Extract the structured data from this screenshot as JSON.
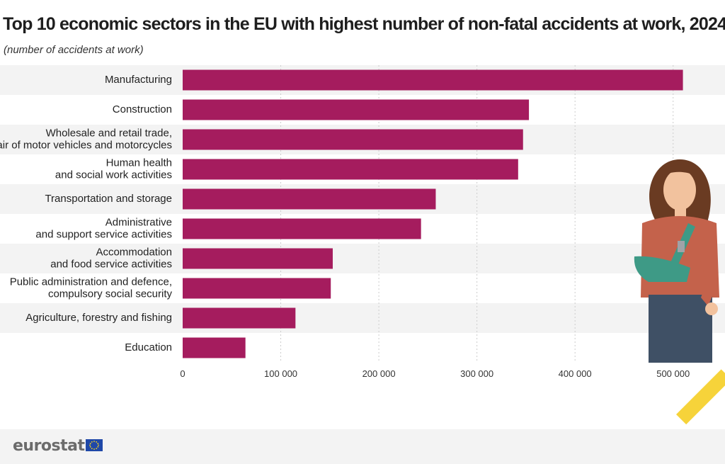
{
  "title": "Top 10 economic sectors in the EU with highest number of non-fatal accidents at work, 2024",
  "subtitle": "(number of accidents at work)",
  "brand": {
    "name": "eurostat",
    "flag_color": "#1f48a8",
    "stripe_color": "#f6d33a"
  },
  "colors": {
    "bar": "#a51c5e",
    "band": "#f3f3f3",
    "grid": "#cccccc"
  },
  "chart_data": {
    "type": "bar",
    "orientation": "horizontal",
    "categories": [
      [
        "Manufacturing"
      ],
      [
        "Construction"
      ],
      [
        "Wholesale and retail trade,",
        "repair of motor vehicles and motorcycles"
      ],
      [
        "Human health",
        "and social work activities"
      ],
      [
        "Transportation and storage"
      ],
      [
        "Administrative",
        "and support service activities"
      ],
      [
        "Accommodation",
        "and food service activities"
      ],
      [
        "Public administration and defence,",
        "compulsory social security"
      ],
      [
        "Agriculture, forestry and fishing"
      ],
      [
        "Education"
      ]
    ],
    "values": [
      510000,
      353000,
      347000,
      342000,
      258000,
      243000,
      153000,
      151000,
      115000,
      64000
    ],
    "xlim": [
      0,
      550000
    ],
    "ticks": [
      0,
      100000,
      200000,
      300000,
      400000,
      500000
    ],
    "tick_labels": [
      "0",
      "100 000",
      "200 000",
      "300 000",
      "400 000",
      "500 000"
    ],
    "grid": true,
    "xlabel": "",
    "ylabel": ""
  }
}
